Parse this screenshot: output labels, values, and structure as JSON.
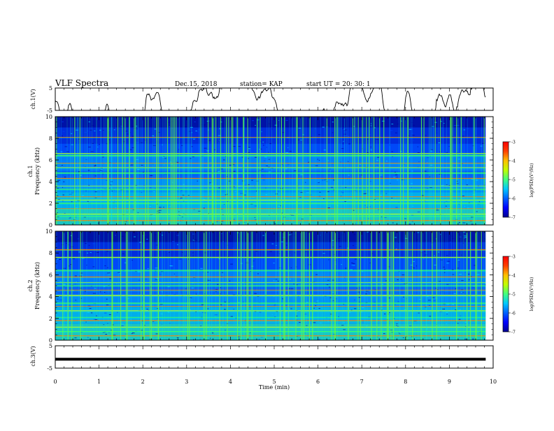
{
  "header": {
    "title": "VLF Spectra",
    "date": "Dec.15, 2018",
    "station": "station= KAP",
    "start": "start  UT =   20: 30: 1"
  },
  "chart_data": [
    {
      "type": "line",
      "name": "ch1-waveform",
      "ylabel": "ch.1(V)",
      "ylim": [
        -5,
        5
      ],
      "yticks": [
        "5",
        "-5"
      ],
      "xlim": [
        0,
        10
      ],
      "x_end": 9.83,
      "baseline": 0,
      "amplitude": 2.5
    },
    {
      "type": "heatmap",
      "name": "ch1-spectrogram",
      "ylabel_line1": "ch.1",
      "ylabel_line2": "Frequency (kHz)",
      "ylim": [
        0,
        10
      ],
      "yticks": [
        "0",
        "2",
        "4",
        "6",
        "8",
        "10"
      ],
      "xlim": [
        0,
        10
      ],
      "x_end": 9.83,
      "colorbar": {
        "label": "log(PSD)(V²/Hz)",
        "range": [
          -7,
          -3
        ],
        "ticks": [
          "-3",
          "-4",
          "-5",
          "-6",
          "-7"
        ]
      },
      "bands_khz": [
        0.4,
        0.8,
        1.0,
        1.5,
        2.0,
        2.3,
        2.6,
        3.3,
        3.6,
        4.3,
        4.8,
        5.3,
        5.7,
        6.4,
        6.6,
        8.1
      ]
    },
    {
      "type": "heatmap",
      "name": "ch2-spectrogram",
      "ylabel_line1": "ch.2",
      "ylabel_line2": "Frequency (kHz)",
      "ylim": [
        0,
        10
      ],
      "yticks": [
        "0",
        "2",
        "4",
        "6",
        "8",
        "10"
      ],
      "xlim": [
        0,
        10
      ],
      "x_end": 9.83,
      "colorbar": {
        "label": "log(PSD)(V²/Hz)",
        "range": [
          -7,
          -3
        ],
        "ticks": [
          "-3",
          "-4",
          "-5",
          "-6",
          "-7"
        ]
      },
      "bands_khz": [
        0.4,
        0.8,
        1.2,
        1.8,
        2.1,
        2.7,
        3.1,
        3.4,
        4.1,
        4.6,
        5.0,
        5.3,
        5.8,
        6.4,
        7.6,
        8.3
      ]
    },
    {
      "type": "line",
      "name": "ch3-waveform",
      "ylabel": "ch.3(V)",
      "ylim": [
        -5,
        5
      ],
      "yticks": [
        "5",
        "-5"
      ],
      "xlim": [
        0,
        10
      ],
      "x_end": 9.83,
      "baseline": -1.0,
      "amplitude": 0
    }
  ],
  "xaxis": {
    "label": "Time (min)",
    "ticks": [
      "0",
      "1",
      "2",
      "3",
      "4",
      "5",
      "6",
      "7",
      "8",
      "9",
      "10"
    ]
  },
  "colors": {
    "colormap": [
      "#00008f",
      "#0000ff",
      "#0060ff",
      "#00c8ff",
      "#40ff80",
      "#c0ff00",
      "#ffc000",
      "#ff4000",
      "#ff0000"
    ]
  }
}
